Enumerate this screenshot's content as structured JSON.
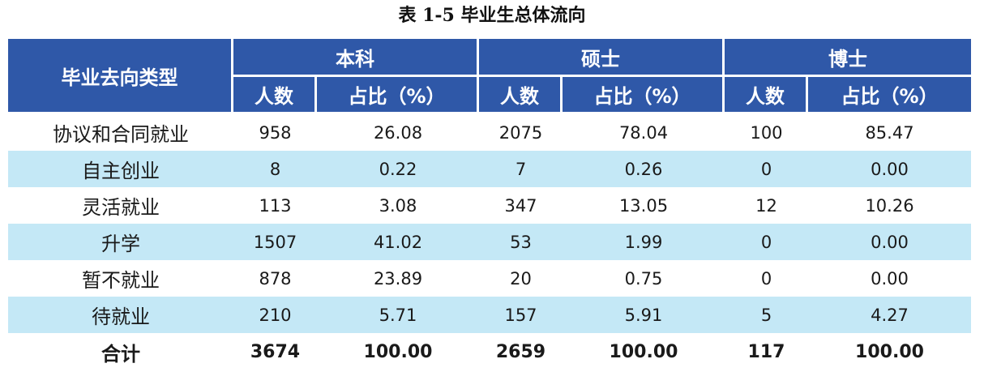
{
  "caption": "表 1-5  毕业生总体流向",
  "header": {
    "category": "毕业去向类型",
    "groups": [
      "本科",
      "硕士",
      "博士"
    ],
    "sub": [
      "人数",
      "占比（%）"
    ]
  },
  "rows": [
    {
      "label": "协议和合同就业",
      "values": [
        "958",
        "26.08",
        "2075",
        "78.04",
        "100",
        "85.47"
      ]
    },
    {
      "label": "自主创业",
      "values": [
        "8",
        "0.22",
        "7",
        "0.26",
        "0",
        "0.00"
      ]
    },
    {
      "label": "灵活就业",
      "values": [
        "113",
        "3.08",
        "347",
        "13.05",
        "12",
        "10.26"
      ]
    },
    {
      "label": "升学",
      "values": [
        "1507",
        "41.02",
        "53",
        "1.99",
        "0",
        "0.00"
      ]
    },
    {
      "label": "暂不就业",
      "values": [
        "878",
        "23.89",
        "20",
        "0.75",
        "0",
        "0.00"
      ]
    },
    {
      "label": "待就业",
      "values": [
        "210",
        "5.71",
        "157",
        "5.91",
        "5",
        "4.27"
      ]
    }
  ],
  "total": {
    "label": "合计",
    "values": [
      "3674",
      "100.00",
      "2659",
      "100.00",
      "117",
      "100.00"
    ]
  },
  "colors": {
    "header_bg": "#2f58a8",
    "alt_row_bg": "#c4e8f6"
  }
}
